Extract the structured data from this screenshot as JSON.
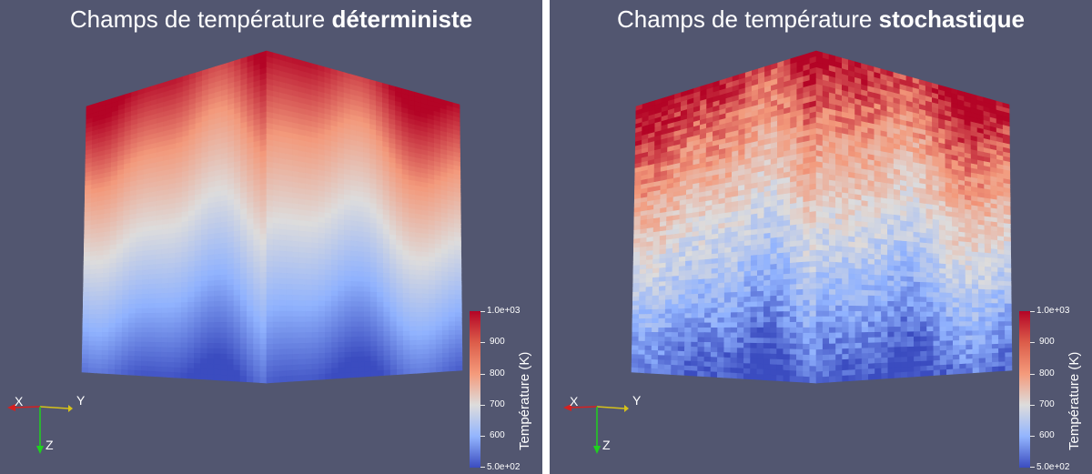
{
  "panels": [
    {
      "title_prefix": "Champs de température ",
      "title_bold": "déterministe",
      "style": "smooth",
      "colorbar": {
        "title": "Température (K)",
        "ticks": [
          "1.0e+03",
          "900",
          "800",
          "700",
          "600",
          "5.0e+02"
        ]
      },
      "axes": {
        "x": "X",
        "y": "Y",
        "z": "Z"
      }
    },
    {
      "title_prefix": "Champs de température ",
      "title_bold": "stochastique",
      "style": "noisy",
      "colorbar": {
        "title": "Température (K)",
        "ticks": [
          "1.0e+03",
          "900",
          "800",
          "700",
          "600",
          "5.0e+02"
        ]
      },
      "axes": {
        "x": "X",
        "y": "Y",
        "z": "Z"
      }
    }
  ],
  "colors": {
    "background": "#525670",
    "colormap_hot": "#b40426",
    "colormap_mid": "#dddcdc",
    "colormap_cold": "#3b4cc0",
    "axis_x": "#d62020",
    "axis_y": "#d6c21a",
    "axis_z": "#1fd11f"
  }
}
